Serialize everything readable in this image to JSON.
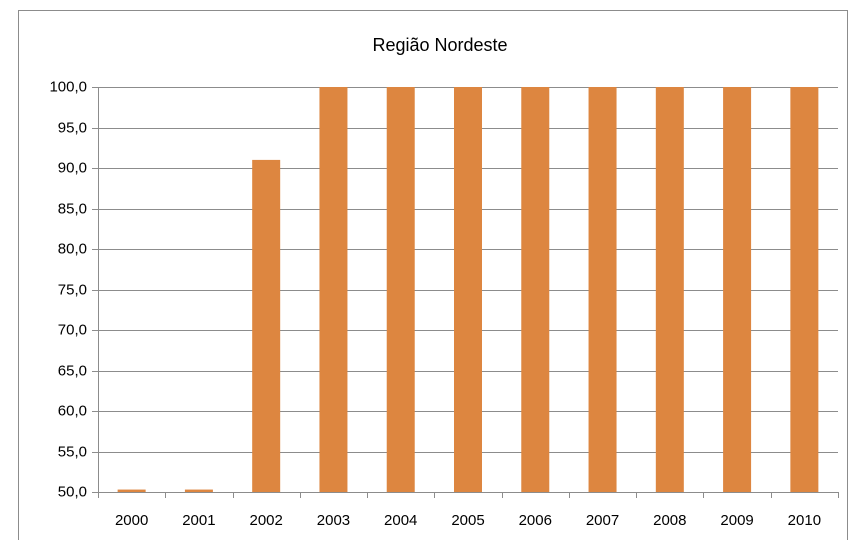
{
  "chart_data": {
    "type": "bar",
    "title": "Região Nordeste",
    "categories": [
      "2000",
      "2001",
      "2002",
      "2003",
      "2004",
      "2005",
      "2006",
      "2007",
      "2008",
      "2009",
      "2010"
    ],
    "values": [
      50.3,
      50.3,
      91.0,
      100,
      100,
      100,
      100,
      100,
      100,
      100,
      100
    ],
    "color": "#dd8640",
    "ylim": [
      50,
      100
    ],
    "yticks": [
      {
        "value": 50,
        "label": "50,0"
      },
      {
        "value": 55,
        "label": "55,0"
      },
      {
        "value": 60,
        "label": "60,0"
      },
      {
        "value": 65,
        "label": "65,0"
      },
      {
        "value": 70,
        "label": "70,0"
      },
      {
        "value": 75,
        "label": "75,0"
      },
      {
        "value": 80,
        "label": "80,0"
      },
      {
        "value": 85,
        "label": "85,0"
      },
      {
        "value": 90,
        "label": "90,0"
      },
      {
        "value": 95,
        "label": "95,0"
      },
      {
        "value": 100,
        "label": "100,0"
      }
    ],
    "grid": true
  }
}
